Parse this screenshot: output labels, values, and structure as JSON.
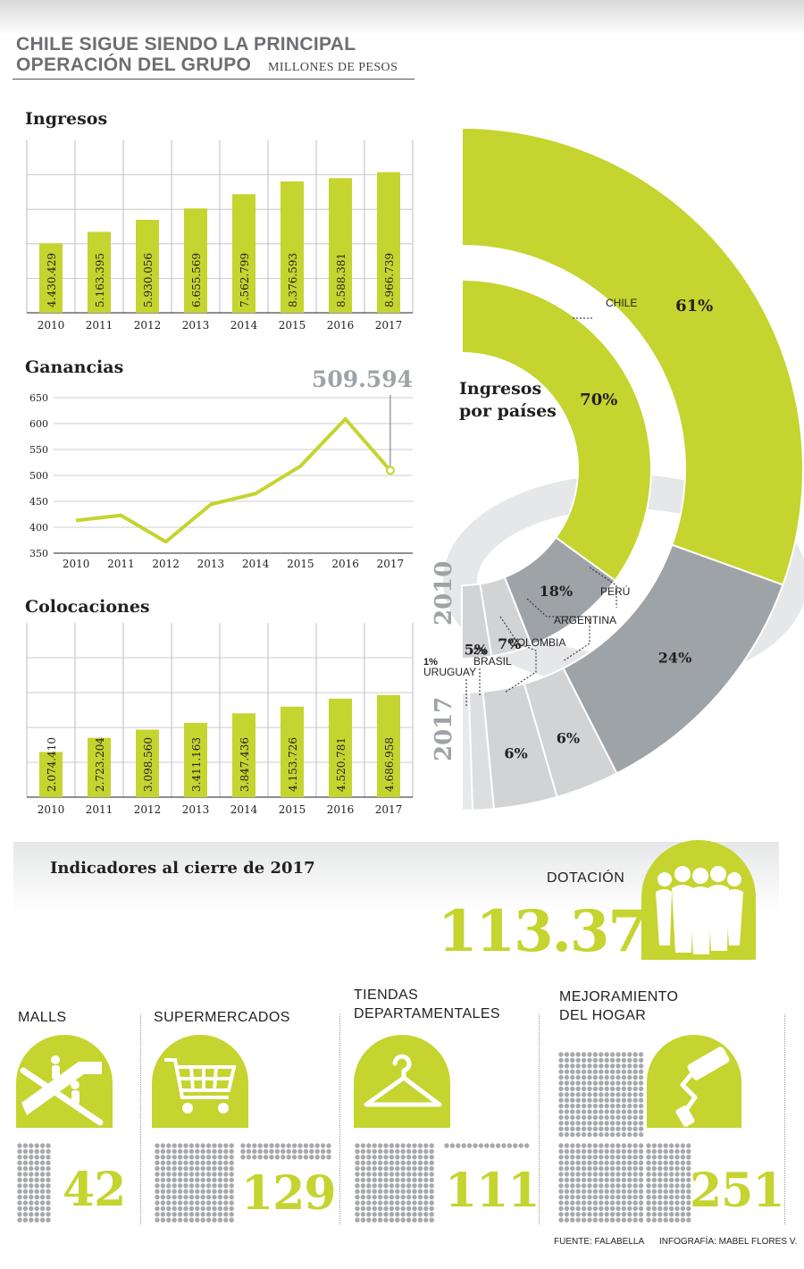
{
  "header": {
    "title_line1": "CHILE SIGUE SIENDO LA PRINCIPAL",
    "title_line2": "OPERACIÓN DEL GRUPO",
    "units": "MILLONES DE PESOS"
  },
  "chart_data": [
    {
      "type": "bar",
      "title": "Ingresos",
      "categories": [
        "2010",
        "2011",
        "2012",
        "2013",
        "2014",
        "2015",
        "2016",
        "2017"
      ],
      "values": [
        4430429,
        5163395,
        5930056,
        6655569,
        7562799,
        8376593,
        8588381,
        8966739
      ],
      "labels": [
        "4.430.429",
        "5.163.395",
        "5.930.056",
        "6.655.569",
        "7.562.799",
        "8.376.593",
        "8.588.381",
        "8.966.739"
      ],
      "ylim": [
        0,
        11000000
      ],
      "grid": true,
      "color": "#c5d42f"
    },
    {
      "type": "line",
      "title": "Ganancias",
      "categories": [
        "2010",
        "2011",
        "2012",
        "2013",
        "2014",
        "2015",
        "2016",
        "2017"
      ],
      "values": [
        413,
        423,
        372,
        444,
        465,
        518,
        609,
        509.594
      ],
      "yticks": [
        "650",
        "600",
        "550",
        "500",
        "450",
        "400",
        "350"
      ],
      "ylim": [
        350,
        650
      ],
      "highlight_label": "509.594",
      "grid": true,
      "color": "#c5d42f"
    },
    {
      "type": "bar",
      "title": "Colocaciones",
      "categories": [
        "2010",
        "2011",
        "2012",
        "2013",
        "2014",
        "2015",
        "2016",
        "2017"
      ],
      "values": [
        2074410,
        2723204,
        3098560,
        3411163,
        3847436,
        4153726,
        4520781,
        4686958
      ],
      "labels": [
        "2.074.410",
        "2.723.204",
        "3.098.560",
        "3.411.163",
        "3.847.436",
        "4.153.726",
        "4.520.781",
        "4.686.958"
      ],
      "ylim": [
        0,
        8000000
      ],
      "grid": true,
      "color": "#c5d42f"
    },
    {
      "type": "pie",
      "title": "Ingresos por países",
      "title_line1": "Ingresos",
      "title_line2": "por países",
      "rings": [
        {
          "year": "2010",
          "slices": [
            {
              "country": "CHILE",
              "value": 70,
              "label": "70%"
            },
            {
              "country": "PERÚ",
              "value": 18,
              "label": "18%"
            },
            {
              "country": "ARGENTINA",
              "value": 7,
              "label": "7%"
            },
            {
              "country": "COLOMBIA",
              "value": 5,
              "label": "5%"
            }
          ]
        },
        {
          "year": "2017",
          "slices": [
            {
              "country": "CHILE",
              "value": 61,
              "label": "61%"
            },
            {
              "country": "PERÚ",
              "value": 24,
              "label": "24%"
            },
            {
              "country": "ARGENTINA",
              "value": 6,
              "label": "6%"
            },
            {
              "country": "COLOMBIA",
              "value": 6,
              "label": "6%"
            },
            {
              "country": "BRASIL",
              "value": 2,
              "label": "2%"
            },
            {
              "country": "URUGUAY",
              "value": 1,
              "label": "1%"
            }
          ]
        }
      ]
    }
  ],
  "indicators": {
    "title": "Indicadores al cierre de 2017",
    "dotacion_label": "DOTACIÓN",
    "dotacion_value": "113.378",
    "malls_label": "MALLS",
    "malls_value": "42",
    "super_label": "SUPERMERCADOS",
    "super_value": "129",
    "tiendas_label_1": "TIENDAS",
    "tiendas_label_2": "DEPARTAMENTALES",
    "tiendas_value": "111",
    "hogar_label_1": "MEJORAMIENTO",
    "hogar_label_2": "DEL HOGAR",
    "hogar_value": "251",
    "icons": [
      "people-icon",
      "escalator-icon",
      "shopping-cart-icon",
      "hanger-icon",
      "paint-roller-icon"
    ]
  },
  "footer": {
    "source": "FUENTE: FALABELLA",
    "credit": "INFOGRAFÍA: MABEL FLORES V."
  },
  "colors": {
    "accent": "#c5d42f",
    "gray": "#9ea3a8",
    "light_gray": "#d1d3d4",
    "text": "#231f20"
  }
}
